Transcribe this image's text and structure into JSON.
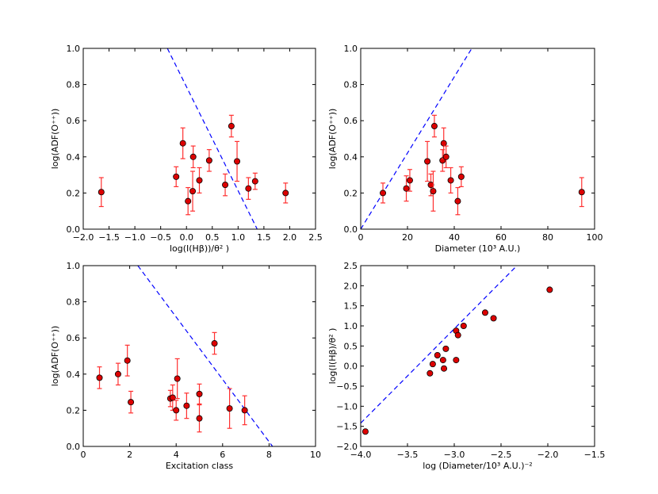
{
  "chart_data": [
    {
      "type": "scatter",
      "xlabel": "log(I(Hβ))/θ² )",
      "ylabel": "log(ADF(O⁺⁺))",
      "xlim": [
        -2.0,
        2.5
      ],
      "ylim": [
        0.0,
        1.0
      ],
      "xticks": [
        -2.0,
        -1.5,
        -1.0,
        -0.5,
        0.0,
        0.5,
        1.0,
        1.5,
        2.0,
        2.5
      ],
      "xtick_labels": [
        "−2.0",
        "−1.5",
        "−1.0",
        "−0.5",
        "0.0",
        "0.5",
        "1.0",
        "1.5",
        "2.0",
        "2.5"
      ],
      "yticks": [
        0.0,
        0.2,
        0.4,
        0.6,
        0.8,
        1.0
      ],
      "ytick_labels": [
        "0.0",
        "0.2",
        "0.4",
        "0.6",
        "0.8",
        "1.0"
      ],
      "points": [
        {
          "x": -1.65,
          "y": 0.205,
          "err": 0.08
        },
        {
          "x": -0.2,
          "y": 0.29,
          "err": 0.055
        },
        {
          "x": -0.07,
          "y": 0.475,
          "err": 0.085
        },
        {
          "x": 0.03,
          "y": 0.155,
          "err": 0.075
        },
        {
          "x": 0.13,
          "y": 0.4,
          "err": 0.06
        },
        {
          "x": 0.12,
          "y": 0.21,
          "err": 0.11
        },
        {
          "x": 0.25,
          "y": 0.27,
          "err": 0.07
        },
        {
          "x": 0.44,
          "y": 0.38,
          "err": 0.06
        },
        {
          "x": 0.75,
          "y": 0.245,
          "err": 0.06
        },
        {
          "x": 0.87,
          "y": 0.57,
          "err": 0.06
        },
        {
          "x": 0.98,
          "y": 0.375,
          "err": 0.11
        },
        {
          "x": 1.2,
          "y": 0.225,
          "err": 0.06
        },
        {
          "x": 1.33,
          "y": 0.265,
          "err": 0.045
        },
        {
          "x": 1.92,
          "y": 0.2,
          "err": 0.055
        }
      ],
      "fit_line": [
        [
          -0.37,
          1.0
        ],
        [
          1.37,
          0.0
        ]
      ]
    },
    {
      "type": "scatter",
      "xlabel": "Diameter (10³  A.U.)",
      "ylabel": "log(ADF(O⁺⁺))",
      "xlim": [
        0,
        100
      ],
      "ylim": [
        0.0,
        1.0
      ],
      "xticks": [
        0,
        20,
        40,
        60,
        80,
        100
      ],
      "xtick_labels": [
        "0",
        "20",
        "40",
        "60",
        "80",
        "100"
      ],
      "yticks": [
        0.0,
        0.2,
        0.4,
        0.6,
        0.8,
        1.0
      ],
      "ytick_labels": [
        "0.0",
        "0.2",
        "0.4",
        "0.6",
        "0.8",
        "1.0"
      ],
      "points": [
        {
          "x": 9.5,
          "y": 0.2,
          "err": 0.055
        },
        {
          "x": 19.5,
          "y": 0.225,
          "err": 0.07
        },
        {
          "x": 21,
          "y": 0.27,
          "err": 0.06
        },
        {
          "x": 28.5,
          "y": 0.375,
          "err": 0.11
        },
        {
          "x": 30,
          "y": 0.245,
          "err": 0.06
        },
        {
          "x": 31,
          "y": 0.21,
          "err": 0.11
        },
        {
          "x": 31.5,
          "y": 0.57,
          "err": 0.06
        },
        {
          "x": 35,
          "y": 0.38,
          "err": 0.06
        },
        {
          "x": 35.5,
          "y": 0.475,
          "err": 0.085
        },
        {
          "x": 36.5,
          "y": 0.4,
          "err": 0.06
        },
        {
          "x": 38.5,
          "y": 0.27,
          "err": 0.07
        },
        {
          "x": 41.5,
          "y": 0.155,
          "err": 0.075
        },
        {
          "x": 43,
          "y": 0.29,
          "err": 0.055
        },
        {
          "x": 94.5,
          "y": 0.205,
          "err": 0.08
        }
      ],
      "fit_line": [
        [
          0,
          0.0
        ],
        [
          47.5,
          1.0
        ]
      ]
    },
    {
      "type": "scatter",
      "xlabel": "Excitation class",
      "ylabel": "log(ADF(O⁺⁺))",
      "xlim": [
        0,
        10
      ],
      "ylim": [
        0.0,
        1.0
      ],
      "xticks": [
        0,
        2,
        4,
        6,
        8,
        10
      ],
      "xtick_labels": [
        "0",
        "2",
        "4",
        "6",
        "8",
        "10"
      ],
      "yticks": [
        0.0,
        0.2,
        0.4,
        0.6,
        0.8,
        1.0
      ],
      "ytick_labels": [
        "0.0",
        "0.2",
        "0.4",
        "0.6",
        "0.8",
        "1.0"
      ],
      "points": [
        {
          "x": 0.7,
          "y": 0.38,
          "err": 0.06
        },
        {
          "x": 1.5,
          "y": 0.4,
          "err": 0.06
        },
        {
          "x": 1.9,
          "y": 0.475,
          "err": 0.085
        },
        {
          "x": 2.05,
          "y": 0.245,
          "err": 0.06
        },
        {
          "x": 3.75,
          "y": 0.265,
          "err": 0.045
        },
        {
          "x": 3.85,
          "y": 0.27,
          "err": 0.07
        },
        {
          "x": 4.05,
          "y": 0.375,
          "err": 0.11
        },
        {
          "x": 4.0,
          "y": 0.2,
          "err": 0.055
        },
        {
          "x": 4.45,
          "y": 0.225,
          "err": 0.07
        },
        {
          "x": 5.0,
          "y": 0.29,
          "err": 0.055
        },
        {
          "x": 5.0,
          "y": 0.155,
          "err": 0.075
        },
        {
          "x": 5.65,
          "y": 0.57,
          "err": 0.06
        },
        {
          "x": 6.3,
          "y": 0.21,
          "err": 0.11
        },
        {
          "x": 6.95,
          "y": 0.2,
          "err": 0.08
        }
      ],
      "fit_line": [
        [
          2.35,
          1.0
        ],
        [
          8.15,
          0.0
        ]
      ]
    },
    {
      "type": "scatter",
      "xlabel": "log (Diameter/10³ A.U.)⁻²",
      "ylabel": "log(I(Hβ)/θ² )",
      "xlim": [
        -4.0,
        -1.5
      ],
      "ylim": [
        -2.0,
        2.5
      ],
      "xticks": [
        -4.0,
        -3.5,
        -3.0,
        -2.5,
        -2.0,
        -1.5
      ],
      "xtick_labels": [
        "−4.0",
        "−3.5",
        "−3.0",
        "−2.5",
        "−2.0",
        "−1.5"
      ],
      "yticks": [
        -2.0,
        -1.5,
        -1.0,
        -0.5,
        0.0,
        0.5,
        1.0,
        1.5,
        2.0,
        2.5
      ],
      "ytick_labels": [
        "−2.0",
        "−1.5",
        "−1.0",
        "−0.5",
        "0.0",
        "0.5",
        "1.0",
        "1.5",
        "2.0",
        "2.5"
      ],
      "points": [
        {
          "x": -3.95,
          "y": -1.63
        },
        {
          "x": -3.26,
          "y": -0.18
        },
        {
          "x": -3.23,
          "y": 0.05
        },
        {
          "x": -3.18,
          "y": 0.27
        },
        {
          "x": -3.12,
          "y": 0.15
        },
        {
          "x": -3.11,
          "y": -0.06
        },
        {
          "x": -3.09,
          "y": 0.43
        },
        {
          "x": -2.98,
          "y": 0.88
        },
        {
          "x": -2.96,
          "y": 0.77
        },
        {
          "x": -2.98,
          "y": 0.15
        },
        {
          "x": -2.9,
          "y": 1.0
        },
        {
          "x": -2.67,
          "y": 1.33
        },
        {
          "x": -2.58,
          "y": 1.19
        },
        {
          "x": -1.98,
          "y": 1.9
        }
      ],
      "fit_line": [
        [
          -4.0,
          -1.42
        ],
        [
          -2.33,
          2.5
        ]
      ]
    }
  ]
}
